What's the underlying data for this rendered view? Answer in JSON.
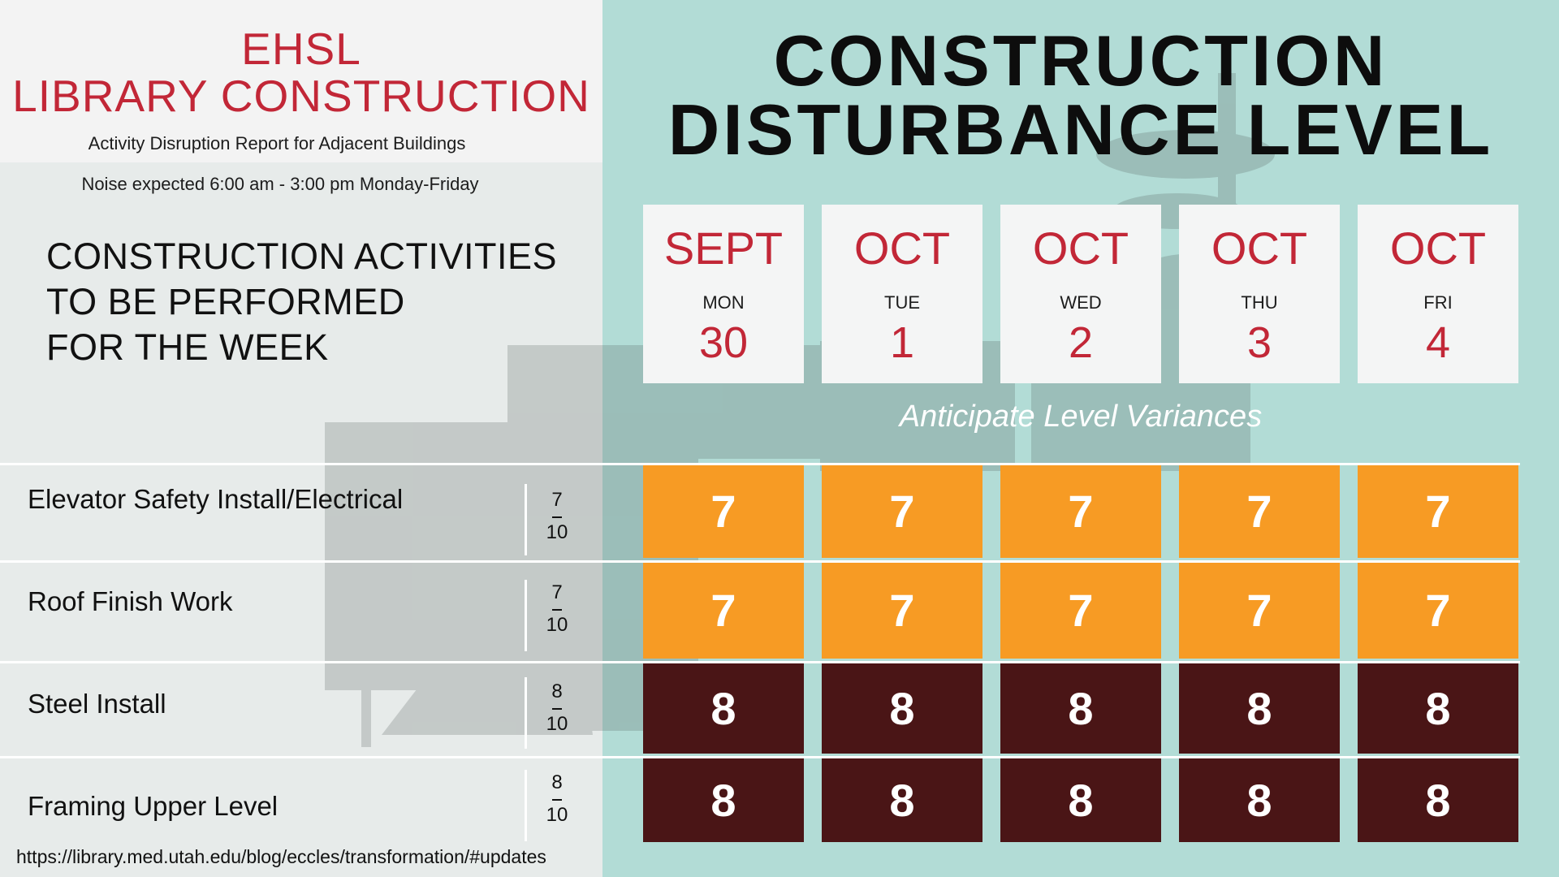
{
  "header": {
    "title_line1": "EHSL",
    "title_line2": "LIBRARY CONSTRUCTION",
    "subtitle1": "Activity Disruption Report for Adjacent Buildings",
    "subtitle2": "Noise expected 6:00 am - 3:00 pm Monday-Friday",
    "accent_color": "#c22737"
  },
  "activities_heading": {
    "line1": "CONSTRUCTION ACTIVITIES",
    "line2": "TO BE PERFORMED",
    "line3": "FOR THE WEEK"
  },
  "main_title": {
    "line1": "CONSTRUCTION",
    "line2": "DISTURBANCE LEVEL"
  },
  "days": [
    {
      "month": "SEPT",
      "weekday": "MON",
      "date": "30"
    },
    {
      "month": "OCT",
      "weekday": "TUE",
      "date": "1"
    },
    {
      "month": "OCT",
      "weekday": "WED",
      "date": "2"
    },
    {
      "month": "OCT",
      "weekday": "THU",
      "date": "3"
    },
    {
      "month": "OCT",
      "weekday": "FRI",
      "date": "4"
    }
  ],
  "variance_note": "Anticipate Level Variances",
  "activities": [
    {
      "label": "Elevator Safety Install/Electrical",
      "level": "7",
      "max": "10",
      "daily": [
        "7",
        "7",
        "7",
        "7",
        "7"
      ]
    },
    {
      "label": "Roof Finish Work",
      "level": "7",
      "max": "10",
      "daily": [
        "7",
        "7",
        "7",
        "7",
        "7"
      ]
    },
    {
      "label": "Steel Install",
      "level": "8",
      "max": "10",
      "daily": [
        "8",
        "8",
        "8",
        "8",
        "8"
      ]
    },
    {
      "label": "Framing Upper Level",
      "level": "8",
      "max": "10",
      "daily": [
        "8",
        "8",
        "8",
        "8",
        "8"
      ]
    }
  ],
  "level_colors": {
    "7": "#f79b24",
    "8": "#4a1516"
  },
  "url": "https://library.med.utah.edu/blog/eccles/transformation/#updates"
}
